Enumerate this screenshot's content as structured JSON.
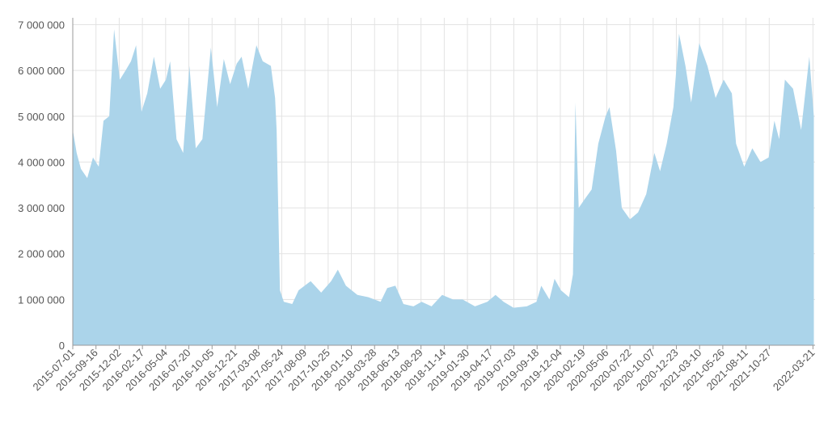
{
  "chart_data": {
    "type": "area",
    "color": "#abd4ea",
    "grid": true,
    "x": [
      "2015-07-01",
      "2015-07-14",
      "2015-07-28",
      "2015-08-18",
      "2015-09-06",
      "2015-09-25",
      "2015-10-11",
      "2015-10-30",
      "2015-11-15",
      "2015-12-04",
      "2015-12-23",
      "2016-01-10",
      "2016-01-27",
      "2016-02-14",
      "2016-03-04",
      "2016-03-26",
      "2016-04-16",
      "2016-05-05",
      "2016-05-19",
      "2016-06-09",
      "2016-07-01",
      "2016-07-22",
      "2016-08-12",
      "2016-09-03",
      "2016-10-01",
      "2016-10-22",
      "2016-11-13",
      "2016-12-04",
      "2016-12-26",
      "2017-01-11",
      "2017-02-02",
      "2017-03-01",
      "2017-03-22",
      "2017-04-18",
      "2017-05-02",
      "2017-05-07",
      "2017-05-18",
      "2017-05-31",
      "2017-06-28",
      "2017-07-19",
      "2017-08-28",
      "2017-10-02",
      "2017-11-04",
      "2017-11-26",
      "2017-12-23",
      "2018-01-30",
      "2018-03-07",
      "2018-04-17",
      "2018-05-09",
      "2018-06-05",
      "2018-07-02",
      "2018-08-04",
      "2018-08-31",
      "2018-10-03",
      "2018-11-07",
      "2018-12-13",
      "2019-01-14",
      "2019-02-24",
      "2019-04-06",
      "2019-05-03",
      "2019-05-30",
      "2019-07-02",
      "2019-08-15",
      "2019-09-16",
      "2019-10-02",
      "2019-10-29",
      "2019-11-15",
      "2019-12-06",
      "2020-01-02",
      "2020-01-15",
      "2020-01-23",
      "2020-02-03",
      "2020-02-24",
      "2020-03-17",
      "2020-04-08",
      "2020-05-02",
      "2020-05-15",
      "2020-06-06",
      "2020-06-25",
      "2020-07-22",
      "2020-08-18",
      "2020-09-14",
      "2020-10-11",
      "2020-10-30",
      "2020-11-21",
      "2020-12-13",
      "2021-01-01",
      "2021-01-22",
      "2021-02-10",
      "2021-03-09",
      "2021-04-05",
      "2021-05-02",
      "2021-05-29",
      "2021-06-25",
      "2021-07-09",
      "2021-08-05",
      "2021-09-01",
      "2021-09-28",
      "2021-10-25",
      "2021-11-13",
      "2021-11-29",
      "2021-12-18",
      "2022-01-14",
      "2022-02-10",
      "2022-03-09",
      "2022-03-24"
    ],
    "values": [
      4700000,
      4200000,
      3850000,
      3650000,
      4100000,
      3900000,
      4900000,
      5000000,
      6900000,
      5800000,
      6000000,
      6200000,
      6550000,
      5100000,
      5500000,
      6300000,
      5600000,
      5800000,
      6200000,
      4500000,
      4200000,
      6100000,
      4300000,
      4500000,
      6500000,
      5200000,
      6250000,
      5700000,
      6150000,
      6300000,
      5600000,
      6550000,
      6200000,
      6100000,
      5400000,
      4700000,
      1200000,
      950000,
      900000,
      1200000,
      1400000,
      1150000,
      1400000,
      1650000,
      1300000,
      1100000,
      1050000,
      950000,
      1250000,
      1300000,
      900000,
      850000,
      950000,
      850000,
      1100000,
      1000000,
      1000000,
      850000,
      950000,
      1100000,
      950000,
      820000,
      850000,
      950000,
      1300000,
      1000000,
      1450000,
      1200000,
      1050000,
      1550000,
      5300000,
      3000000,
      3200000,
      3400000,
      4400000,
      5000000,
      5200000,
      4250000,
      3000000,
      2750000,
      2900000,
      3300000,
      4200000,
      3800000,
      4400000,
      5200000,
      6800000,
      6100000,
      5300000,
      6600000,
      6100000,
      5400000,
      5800000,
      5500000,
      4400000,
      3900000,
      4300000,
      4000000,
      4100000,
      4900000,
      4500000,
      5800000,
      5600000,
      4700000,
      6300000,
      5000000
    ],
    "xlim": [
      "2015-07-01",
      "2022-03-28"
    ],
    "xticks": [
      "2015-07-01",
      "2015-09-16",
      "2015-12-02",
      "2016-02-17",
      "2016-05-04",
      "2016-07-20",
      "2016-10-05",
      "2016-12-21",
      "2017-03-08",
      "2017-05-24",
      "2017-08-09",
      "2017-10-25",
      "2018-01-10",
      "2018-03-28",
      "2018-06-13",
      "2018-08-29",
      "2018-11-14",
      "2019-01-30",
      "2019-04-17",
      "2019-07-03",
      "2019-09-18",
      "2019-12-04",
      "2020-02-19",
      "2020-05-06",
      "2020-07-22",
      "2020-10-07",
      "2020-12-23",
      "2021-03-10",
      "2021-05-26",
      "2021-08-11",
      "2021-10-27",
      "2022-03-21"
    ],
    "ylim": [
      0,
      7150000
    ],
    "yticks": [
      0,
      {
        "value": 1000000,
        "label": "1 000 000"
      },
      {
        "value": 2000000,
        "label": "2 000 000"
      },
      {
        "value": 3000000,
        "label": "3 000 000"
      },
      {
        "value": 4000000,
        "label": "4 000 000"
      },
      {
        "value": 5000000,
        "label": "5 000 000"
      },
      {
        "value": 6000000,
        "label": "6 000 000"
      },
      {
        "value": 7000000,
        "label": "7 000 000"
      }
    ]
  }
}
